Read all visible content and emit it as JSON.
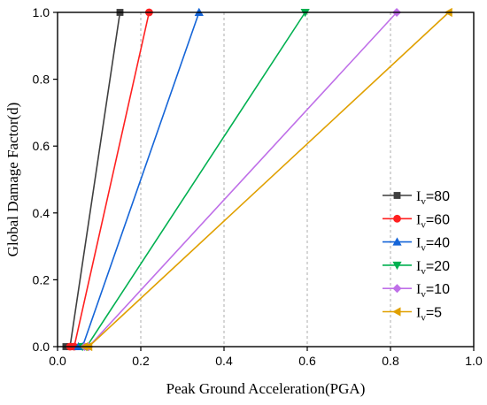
{
  "chart_data": {
    "type": "line",
    "title": "",
    "xlabel": "Peak Ground Acceleration(PGA)",
    "ylabel": "Global Damage Factor(d)",
    "xlim": [
      0.0,
      1.0
    ],
    "ylim": [
      0.0,
      1.0
    ],
    "x_ticks": [
      "0.0",
      "0.2",
      "0.4",
      "0.6",
      "0.8",
      "1.0"
    ],
    "y_ticks": [
      "0.0",
      "0.2",
      "0.4",
      "0.6",
      "0.8",
      "1.0"
    ],
    "grid": true,
    "legend_position": "bottom-right",
    "series": [
      {
        "name": "Iv=80",
        "label_letter": "I",
        "label_sub": "v",
        "label_value": "=80",
        "color": "#3f3f3f",
        "marker": "square",
        "points": [
          [
            0.02,
            0.0
          ],
          [
            0.03,
            0.0
          ],
          [
            0.15,
            1.0
          ]
        ]
      },
      {
        "name": "Iv=60",
        "label_letter": "I",
        "label_sub": "v",
        "label_value": "=60",
        "color": "#ff2020",
        "marker": "circle",
        "points": [
          [
            0.03,
            0.0
          ],
          [
            0.04,
            0.0
          ],
          [
            0.22,
            1.0
          ]
        ]
      },
      {
        "name": "Iv=40",
        "label_letter": "I",
        "label_sub": "v",
        "label_value": "=40",
        "color": "#1565d8",
        "marker": "triangle-up",
        "points": [
          [
            0.05,
            0.0
          ],
          [
            0.06,
            0.0
          ],
          [
            0.34,
            1.0
          ]
        ]
      },
      {
        "name": "Iv=20",
        "label_letter": "I",
        "label_sub": "v",
        "label_value": "=20",
        "color": "#00b050",
        "marker": "triangle-down",
        "points": [
          [
            0.06,
            0.0
          ],
          [
            0.07,
            0.0
          ],
          [
            0.595,
            1.0
          ]
        ]
      },
      {
        "name": "Iv=10",
        "label_letter": "I",
        "label_sub": "v",
        "label_value": "=10",
        "color": "#bf6fe8",
        "marker": "diamond",
        "points": [
          [
            0.065,
            0.0
          ],
          [
            0.075,
            0.0
          ],
          [
            0.815,
            1.0
          ]
        ]
      },
      {
        "name": "Iv=5",
        "label_letter": "I",
        "label_sub": "v",
        "label_value": "=5",
        "color": "#e0a000",
        "marker": "triangle-left",
        "points": [
          [
            0.065,
            0.0
          ],
          [
            0.075,
            0.0
          ],
          [
            0.94,
            1.0
          ]
        ]
      }
    ]
  }
}
